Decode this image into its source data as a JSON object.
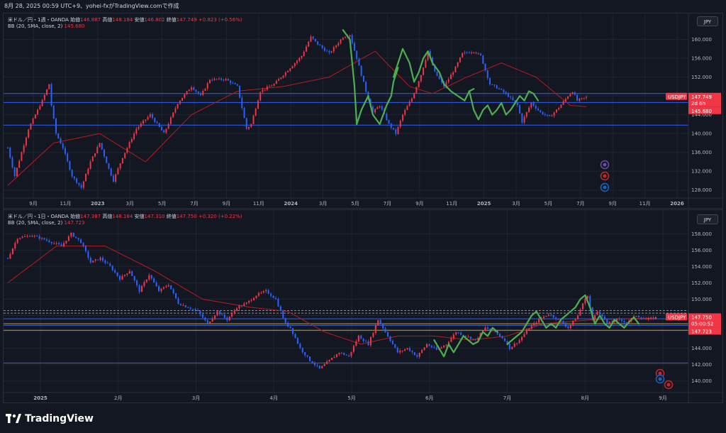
{
  "header": {
    "text": "8月 28, 2025 00:59 UTC+9、yohei-fxがTradingView.comで作成"
  },
  "footer": {
    "brand": "TradingView"
  },
  "colors": {
    "background": "#131722",
    "up": "#f23645",
    "down": "#2962ff",
    "bb_basis": "#b71c1c",
    "pattern": "#4caf50",
    "hline": "#2962ff",
    "hline_yellow": "#c9a227",
    "price_tag": "#f23645"
  },
  "chart_data": [
    {
      "type": "candlestick",
      "legend": {
        "symbol": "米ドル／円・1週・OANDA",
        "open_label": "始値",
        "open": "146.887",
        "high_label": "高値",
        "high": "148.184",
        "low_label": "安値",
        "low": "146.802",
        "close_label": "終値",
        "close": "147.749",
        "change": "+0.823 (+0.56%)"
      },
      "indicator": {
        "name": "BB (20, SMA, close, 2)",
        "value": "145.680"
      },
      "currency": "JPY",
      "y_ticks": [
        "160.000",
        "156.000",
        "152.000",
        "148.000",
        "144.000",
        "140.000",
        "136.000",
        "132.000",
        "128.000"
      ],
      "ylim": [
        126,
        164
      ],
      "x_ticks": [
        "9月",
        "11月",
        "2023",
        "3月",
        "5月",
        "7月",
        "9月",
        "11月",
        "2024",
        "3月",
        "5月",
        "7月",
        "9月",
        "11月",
        "2025",
        "3月",
        "5月",
        "7月",
        "9月",
        "11月",
        "2026"
      ],
      "x_tick_bold": [
        "2023",
        "2024",
        "2025",
        "2026"
      ],
      "price_tag": {
        "symbol": "USDJPY",
        "price": "147.749",
        "countdown": "2d 6h",
        "bb_price": "145.680"
      },
      "horizontal_levels": [
        148.5,
        146.6,
        141.8
      ],
      "anchors": [
        [
          0,
          137
        ],
        [
          3,
          131
        ],
        [
          9,
          141
        ],
        [
          15,
          147
        ],
        [
          18,
          150.5
        ],
        [
          19,
          146
        ],
        [
          21,
          140
        ],
        [
          24,
          137
        ],
        [
          28,
          131
        ],
        [
          32,
          128.5
        ],
        [
          36,
          134
        ],
        [
          40,
          138
        ],
        [
          44,
          132.5
        ],
        [
          46,
          130
        ],
        [
          50,
          135
        ],
        [
          56,
          141
        ],
        [
          62,
          144
        ],
        [
          68,
          140
        ],
        [
          74,
          146.5
        ],
        [
          80,
          150
        ],
        [
          84,
          148
        ],
        [
          88,
          151.5
        ],
        [
          95,
          151.5
        ],
        [
          100,
          150
        ],
        [
          104,
          141
        ],
        [
          106,
          142
        ],
        [
          110,
          149
        ],
        [
          116,
          150.5
        ],
        [
          122,
          153.5
        ],
        [
          128,
          156.5
        ],
        [
          132,
          160.5
        ],
        [
          135,
          159
        ],
        [
          140,
          157
        ],
        [
          146,
          160.5
        ],
        [
          149,
          161
        ],
        [
          152,
          156
        ],
        [
          156,
          149
        ],
        [
          159,
          144.5
        ],
        [
          162,
          146
        ],
        [
          166,
          142
        ],
        [
          169,
          140
        ],
        [
          172,
          144
        ],
        [
          176,
          147.5
        ],
        [
          180,
          152.5
        ],
        [
          183,
          157.5
        ],
        [
          186,
          153
        ],
        [
          190,
          150
        ],
        [
          195,
          154
        ],
        [
          198,
          157
        ],
        [
          203,
          157.5
        ],
        [
          206,
          156.5
        ],
        [
          210,
          150.5
        ],
        [
          214,
          149.5
        ],
        [
          218,
          148
        ],
        [
          222,
          146
        ],
        [
          224,
          142.5
        ],
        [
          228,
          146.5
        ],
        [
          232,
          144.5
        ],
        [
          236,
          143.5
        ],
        [
          240,
          145.5
        ],
        [
          244,
          148
        ],
        [
          246,
          149
        ],
        [
          248,
          147
        ],
        [
          252,
          147.7
        ]
      ],
      "bb_basis_anchors": [
        [
          0,
          129
        ],
        [
          20,
          138
        ],
        [
          40,
          140
        ],
        [
          60,
          134
        ],
        [
          80,
          144
        ],
        [
          100,
          149
        ],
        [
          120,
          150
        ],
        [
          140,
          152
        ],
        [
          160,
          157.5
        ],
        [
          175,
          150
        ],
        [
          185,
          148.5
        ],
        [
          200,
          152
        ],
        [
          215,
          155
        ],
        [
          230,
          152
        ],
        [
          245,
          146
        ],
        [
          252,
          145.7
        ]
      ],
      "pattern_segments": [
        [
          [
            146,
            162
          ],
          [
            149,
            160
          ],
          [
            151,
            150
          ],
          [
            152,
            142
          ]
        ],
        [
          [
            152,
            142
          ],
          [
            154,
            145
          ],
          [
            157,
            148
          ],
          [
            159,
            144
          ],
          [
            162,
            142
          ],
          [
            165,
            146
          ],
          [
            167,
            148
          ],
          [
            168,
            151
          ],
          [
            170,
            154
          ]
        ],
        [
          [
            168,
            152
          ],
          [
            170,
            155
          ],
          [
            172,
            158
          ],
          [
            175,
            155
          ],
          [
            177,
            151
          ],
          [
            179,
            153
          ],
          [
            181,
            156
          ],
          [
            183,
            157.5
          ],
          [
            185,
            155
          ],
          [
            188,
            153
          ],
          [
            190,
            150.5
          ],
          [
            193,
            149
          ],
          [
            196,
            148
          ],
          [
            199,
            147
          ],
          [
            201,
            149
          ],
          [
            203,
            149.5
          ]
        ],
        [
          [
            201,
            149
          ],
          [
            203,
            145
          ],
          [
            205,
            143
          ],
          [
            207,
            145
          ],
          [
            209,
            146
          ],
          [
            211,
            144
          ],
          [
            213,
            145
          ],
          [
            215,
            146.5
          ],
          [
            217,
            144
          ],
          [
            219,
            145
          ],
          [
            221,
            146.5
          ],
          [
            223,
            148
          ],
          [
            225,
            147
          ],
          [
            227,
            149
          ],
          [
            229,
            148.5
          ],
          [
            231,
            147
          ]
        ]
      ],
      "events": [
        "thunder",
        "flag-jp",
        "flag-us"
      ]
    },
    {
      "type": "candlestick",
      "legend": {
        "symbol": "米ドル／円・1日・OANDA",
        "open_label": "始値",
        "open": "147.387",
        "high_label": "高値",
        "high": "148.184",
        "low_label": "安値",
        "low": "147.310",
        "close_label": "終値",
        "close": "147.750",
        "change": "+0.320 (+0.22%)"
      },
      "indicator": {
        "name": "BB (20, SMA, close, 2)",
        "value": "147.723"
      },
      "currency": "JPY",
      "y_ticks": [
        "158.000",
        "156.000",
        "154.000",
        "152.000",
        "150.000",
        "148.000",
        "146.000",
        "144.000",
        "142.000",
        "140.000"
      ],
      "ylim": [
        138.5,
        160.2
      ],
      "x_ticks": [
        "2025",
        "2月",
        "3月",
        "4月",
        "5月",
        "6月",
        "7月",
        "8月",
        "9月"
      ],
      "x_tick_bold": [
        "2025"
      ],
      "price_tag": {
        "symbol": "USDJPY",
        "price": "147.750",
        "countdown": "05:00:52",
        "bb_price": "147.723"
      },
      "horizontal_levels": [
        147.6,
        146.8,
        142.2
      ],
      "yellow_levels": [
        147.0,
        146.2
      ],
      "dashed_levels": [
        148.6,
        148.3
      ],
      "anchors": [
        [
          0,
          155
        ],
        [
          4,
          157.5
        ],
        [
          10,
          157.8
        ],
        [
          16,
          157.2
        ],
        [
          22,
          156.5
        ],
        [
          26,
          158
        ],
        [
          30,
          157
        ],
        [
          34,
          154.5
        ],
        [
          38,
          155
        ],
        [
          42,
          154
        ],
        [
          46,
          152.5
        ],
        [
          50,
          153.5
        ],
        [
          54,
          151
        ],
        [
          58,
          153
        ],
        [
          62,
          151
        ],
        [
          66,
          151.8
        ],
        [
          70,
          149.5
        ],
        [
          74,
          149
        ],
        [
          78,
          148.5
        ],
        [
          82,
          147
        ],
        [
          86,
          148.5
        ],
        [
          90,
          147.5
        ],
        [
          94,
          149
        ],
        [
          98,
          149.5
        ],
        [
          102,
          150.5
        ],
        [
          106,
          151
        ],
        [
          110,
          150
        ],
        [
          114,
          147
        ],
        [
          116,
          146.5
        ],
        [
          120,
          144
        ],
        [
          124,
          142.5
        ],
        [
          128,
          141.5
        ],
        [
          132,
          142.5
        ],
        [
          136,
          143.5
        ],
        [
          140,
          143
        ],
        [
          144,
          145.5
        ],
        [
          148,
          144.5
        ],
        [
          152,
          147.5
        ],
        [
          156,
          145.5
        ],
        [
          160,
          143.5
        ],
        [
          164,
          144
        ],
        [
          168,
          143
        ],
        [
          172,
          144.5
        ],
        [
          176,
          143.8
        ],
        [
          180,
          144.5
        ],
        [
          184,
          146
        ],
        [
          188,
          145.5
        ],
        [
          192,
          145
        ],
        [
          196,
          146.5
        ],
        [
          200,
          146
        ],
        [
          204,
          145
        ],
        [
          206,
          144
        ],
        [
          210,
          145
        ],
        [
          214,
          146.5
        ],
        [
          218,
          147.5
        ],
        [
          222,
          148.2
        ],
        [
          226,
          147.5
        ],
        [
          230,
          146.5
        ],
        [
          234,
          148
        ],
        [
          236,
          149.5
        ],
        [
          238,
          150.5
        ],
        [
          240,
          147.5
        ],
        [
          242,
          148.5
        ],
        [
          244,
          148
        ],
        [
          246,
          147
        ],
        [
          250,
          147.5
        ],
        [
          254,
          147.2
        ],
        [
          258,
          148
        ],
        [
          262,
          147.5
        ],
        [
          266,
          147.75
        ]
      ],
      "bb_basis_anchors": [
        [
          0,
          152
        ],
        [
          20,
          156.5
        ],
        [
          40,
          156.5
        ],
        [
          60,
          153.5
        ],
        [
          80,
          150
        ],
        [
          100,
          149
        ],
        [
          115,
          148.5
        ],
        [
          130,
          146
        ],
        [
          145,
          144.5
        ],
        [
          160,
          145.5
        ],
        [
          175,
          145.5
        ],
        [
          190,
          145
        ],
        [
          205,
          145.5
        ],
        [
          220,
          147
        ],
        [
          240,
          147.5
        ],
        [
          266,
          147.7
        ]
      ],
      "pattern_segments": [
        [
          [
            175,
            145
          ],
          [
            177,
            144
          ],
          [
            179,
            143
          ],
          [
            181,
            144.5
          ],
          [
            183,
            143.5
          ],
          [
            185,
            144.5
          ],
          [
            187,
            145.5
          ],
          [
            189,
            145
          ],
          [
            191,
            144.5
          ],
          [
            193,
            144.8
          ],
          [
            195,
            146
          ],
          [
            197,
            145.5
          ],
          [
            199,
            146.5
          ],
          [
            201,
            146
          ]
        ],
        [
          [
            205,
            144.5
          ],
          [
            207,
            145
          ],
          [
            209,
            145.5
          ],
          [
            211,
            146
          ],
          [
            213,
            147
          ],
          [
            215,
            148
          ],
          [
            217,
            148.5
          ],
          [
            219,
            147.5
          ],
          [
            221,
            146.5
          ],
          [
            223,
            147
          ],
          [
            225,
            146.5
          ],
          [
            227,
            147.5
          ],
          [
            229,
            148
          ],
          [
            231,
            148.5
          ],
          [
            233,
            149
          ],
          [
            235,
            150
          ],
          [
            237,
            150.5
          ],
          [
            239,
            149
          ],
          [
            241,
            147
          ]
        ],
        [
          [
            241,
            147
          ],
          [
            243,
            148
          ],
          [
            245,
            147
          ],
          [
            247,
            146.5
          ],
          [
            249,
            147.5
          ],
          [
            251,
            147
          ],
          [
            253,
            146.5
          ],
          [
            255,
            147.2
          ],
          [
            257,
            147.8
          ],
          [
            259,
            147
          ]
        ]
      ],
      "events": [
        "flag-jp",
        "flag-us",
        "flag-jp"
      ]
    }
  ]
}
